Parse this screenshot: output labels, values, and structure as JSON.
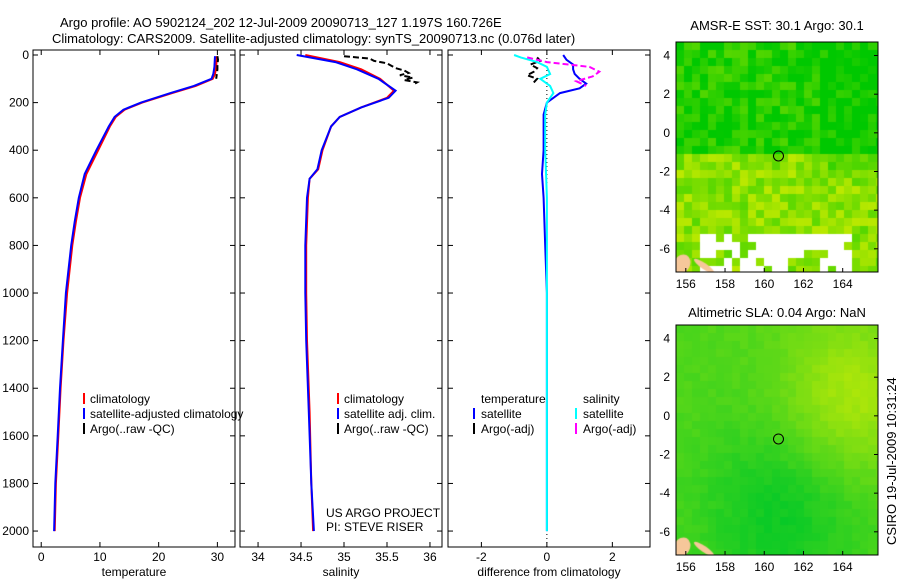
{
  "title_line1": "Argo profile: AO 5902124_202 12-Jul-2009 20090713_127 1.197S 160.726E",
  "title_line2": "Climatology: CARS2009. Satellite-adjusted climatology: synTS_20090713.nc (0.076d later)",
  "side_stamp": "CSIRO 19-Jul-2009 10:31:24",
  "project_line1": "US ARGO PROJECT",
  "project_line2": "PI: STEVE RISER",
  "colors": {
    "climatology": "#ff0000",
    "satellite": "#0000ff",
    "argo": "#000000",
    "sal_satellite": "#00ffff",
    "sal_argo": "#ff00ff"
  },
  "chart_data": [
    {
      "type": "line",
      "xlabel": "temperature",
      "xlim": [
        -1.4,
        33
      ],
      "ylim": [
        2067,
        -21
      ],
      "xticks": [
        0,
        10,
        20,
        30
      ],
      "yticks": [
        0,
        200,
        400,
        600,
        800,
        1000,
        1200,
        1400,
        1600,
        1800,
        2000
      ],
      "legend": [
        "climatology",
        "satellite-adjusted climatology",
        "Argo(..raw -QC)"
      ],
      "series": [
        {
          "name": "climatology",
          "color": "#ff0000",
          "depth": [
            5,
            50,
            80,
            100,
            130,
            160,
            200,
            230,
            260,
            300,
            400,
            500,
            600,
            700,
            800,
            1000,
            1200,
            1400,
            1600,
            1800,
            2000
          ],
          "values": [
            29.9,
            29.8,
            29.6,
            29.2,
            26.3,
            22.3,
            17.2,
            14.2,
            12.7,
            11.7,
            9.7,
            7.7,
            6.6,
            5.9,
            5.3,
            4.4,
            3.8,
            3.3,
            2.9,
            2.5,
            2.3
          ]
        },
        {
          "name": "satellite-adjusted climatology",
          "color": "#0000ff",
          "depth": [
            5,
            50,
            80,
            100,
            130,
            160,
            200,
            230,
            260,
            300,
            400,
            500,
            600,
            700,
            800,
            1000,
            1200,
            1400,
            1600,
            1800,
            2000
          ],
          "values": [
            29.6,
            29.5,
            29.3,
            29.0,
            26.0,
            22.0,
            17.0,
            14.0,
            12.5,
            11.5,
            9.4,
            7.4,
            6.4,
            5.7,
            5.1,
            4.2,
            3.7,
            3.2,
            2.8,
            2.4,
            2.2
          ]
        },
        {
          "name": "Argo(..raw -QC)",
          "color": "#000000",
          "depth": [
            5,
            20,
            40,
            60,
            80,
            100
          ],
          "values": [
            30.0,
            30.1,
            30.0,
            30.0,
            29.9,
            29.8
          ]
        }
      ]
    },
    {
      "type": "line",
      "xlabel": "salinity",
      "xlim": [
        33.79,
        36.14
      ],
      "ylim": [
        2067,
        -21
      ],
      "xticks": [
        34,
        34.5,
        35,
        35.5,
        36
      ],
      "legend": [
        "climatology",
        "satellite adj. clim.",
        "Argo(..raw -QC)"
      ],
      "series": [
        {
          "name": "climatology",
          "color": "#ff0000",
          "depth": [
            0,
            30,
            60,
            100,
            150,
            180,
            220,
            260,
            300,
            400,
            480,
            520,
            600,
            800,
            1000,
            1200,
            1500,
            1800,
            2000
          ],
          "values": [
            34.55,
            34.95,
            35.2,
            35.42,
            35.58,
            35.5,
            35.2,
            34.95,
            34.85,
            34.75,
            34.7,
            34.6,
            34.58,
            34.56,
            34.56,
            34.57,
            34.6,
            34.62,
            34.64
          ]
        },
        {
          "name": "satellite adj. clim.",
          "color": "#0000ff",
          "depth": [
            0,
            30,
            60,
            100,
            150,
            180,
            220,
            260,
            300,
            400,
            480,
            520,
            600,
            800,
            1000,
            1200,
            1500,
            1800,
            2000
          ],
          "values": [
            34.45,
            34.9,
            35.15,
            35.4,
            35.6,
            35.52,
            35.2,
            34.95,
            34.85,
            34.74,
            34.69,
            34.6,
            34.57,
            34.55,
            34.55,
            34.56,
            34.59,
            34.62,
            34.65
          ]
        },
        {
          "name": "Argo(..raw -QC)",
          "color": "#000000",
          "depth": [
            5,
            15,
            25,
            35,
            45,
            55,
            65,
            75,
            85,
            95,
            105,
            115,
            125
          ],
          "values": [
            35.0,
            35.3,
            35.35,
            35.5,
            35.55,
            35.6,
            35.7,
            35.75,
            35.65,
            35.8,
            35.7,
            35.85,
            35.8
          ]
        }
      ]
    },
    {
      "type": "line",
      "xlabel": "difference from climatology",
      "xlim": [
        -3.02,
        3.15
      ],
      "ylim": [
        2067,
        -21
      ],
      "xticks": [
        -2,
        0,
        2
      ],
      "legend_headers": [
        "temperature",
        "salinity"
      ],
      "legend": [
        "satellite",
        "Argo(-adj)",
        "satellite",
        "Argo(-adj)"
      ],
      "series": [
        {
          "name": "temperature satellite",
          "color": "#0000ff",
          "depth": [
            0,
            20,
            40,
            60,
            80,
            100,
            120,
            140,
            160,
            200,
            250,
            300,
            400,
            500,
            600,
            800,
            1000,
            1500,
            2000
          ],
          "values": [
            0.5,
            0.6,
            0.8,
            0.8,
            0.85,
            1.0,
            1.2,
            1.0,
            0.4,
            0.0,
            -0.1,
            -0.1,
            -0.1,
            -0.15,
            -0.1,
            -0.05,
            0.0,
            0.0,
            0.0
          ]
        },
        {
          "name": "temperature Argo(-adj)",
          "color": "#000000",
          "depth": [
            10,
            25,
            40,
            55,
            70,
            85,
            100,
            115
          ],
          "values": [
            -0.3,
            -0.2,
            -0.5,
            -0.3,
            -0.4,
            -0.6,
            -0.3,
            -0.4
          ]
        },
        {
          "name": "salinity satellite",
          "color": "#00ffff",
          "depth": [
            0,
            10,
            30,
            50,
            80,
            100,
            130,
            160,
            200,
            250,
            300,
            400,
            600,
            800,
            1000,
            1500,
            2000
          ],
          "values": [
            -1.0,
            -0.8,
            -0.3,
            0.0,
            0.1,
            -0.2,
            0.1,
            0.2,
            0.0,
            -0.05,
            -0.05,
            -0.05,
            0.0,
            0.0,
            0.0,
            0.0,
            0.0
          ]
        },
        {
          "name": "salinity Argo(-adj)",
          "color": "#ff00ff",
          "depth": [
            10,
            30,
            50,
            70,
            90,
            110,
            130
          ],
          "values": [
            -0.6,
            0.0,
            1.3,
            1.6,
            1.4,
            0.9,
            1.2
          ]
        }
      ]
    },
    {
      "type": "heatmap",
      "title": "AMSR-E SST: 30.1 Argo: 30.1",
      "xlim": [
        155.5,
        165.8
      ],
      "ylim": [
        -7.2,
        4.7
      ],
      "xticks": [
        156,
        158,
        160,
        162,
        164
      ],
      "yticks": [
        4,
        2,
        0,
        -2,
        -4,
        -6
      ],
      "marker": {
        "lon": 160.726,
        "lat": -1.197
      }
    },
    {
      "type": "heatmap",
      "title": "Altimetric SLA: 0.04 Argo: NaN",
      "xlim": [
        155.5,
        165.8
      ],
      "ylim": [
        -7.2,
        4.7
      ],
      "xticks": [
        156,
        158,
        160,
        162,
        164
      ],
      "yticks": [
        4,
        2,
        0,
        -2,
        -4,
        -6
      ],
      "marker": {
        "lon": 160.726,
        "lat": -1.197
      }
    }
  ]
}
